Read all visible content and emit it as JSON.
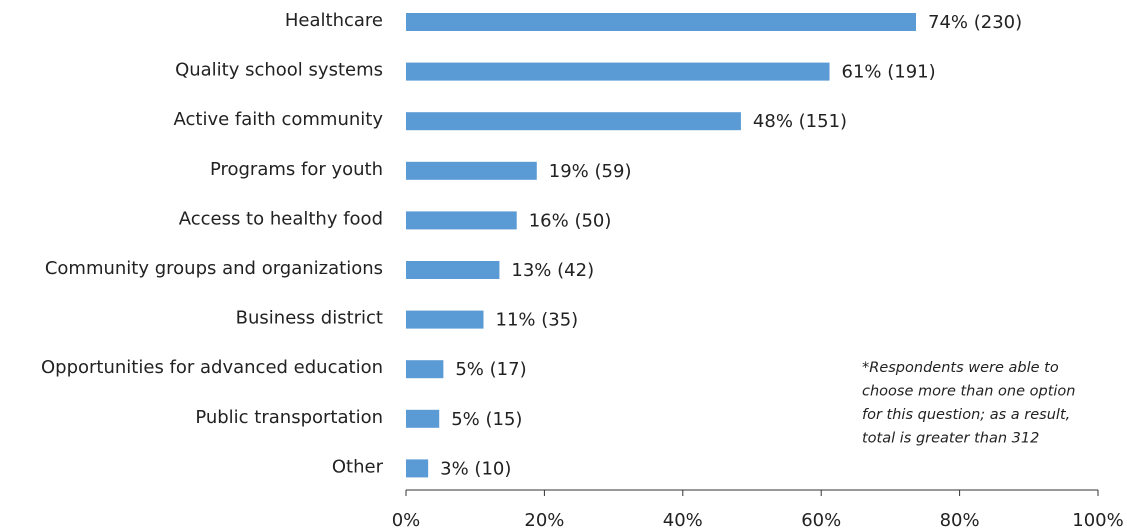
{
  "chart_data": {
    "type": "barh",
    "categories": [
      "Healthcare",
      "Quality school systems",
      "Active faith community",
      "Programs for youth",
      "Access to healthy food",
      "Community groups and organizations",
      "Business district",
      "Opportunities for advanced education",
      "Public transportation",
      "Other"
    ],
    "values": [
      73.7,
      61.2,
      48.4,
      18.9,
      16.0,
      13.5,
      11.2,
      5.4,
      4.8,
      3.2
    ],
    "value_labels": [
      "74% (230)",
      "61% (191)",
      "48% (151)",
      "19% (59)",
      "16% (50)",
      "13% (42)",
      "11% (35)",
      "5% (17)",
      "5% (15)",
      "3% (10)"
    ],
    "color": "#5b9bd5",
    "xlim": [
      0,
      100
    ],
    "xticks": [
      {
        "value": 0,
        "label": "0%"
      },
      {
        "value": 20,
        "label": "20%"
      },
      {
        "value": 40,
        "label": "40%"
      },
      {
        "value": 60,
        "label": "60%"
      },
      {
        "value": 80,
        "label": "80%"
      },
      {
        "value": 100,
        "label": "100%"
      }
    ],
    "grid": false,
    "annotation": [
      "*Respondents were able to",
      "choose more than one option",
      "for this question; as a result,",
      "total is greater than 312"
    ]
  }
}
